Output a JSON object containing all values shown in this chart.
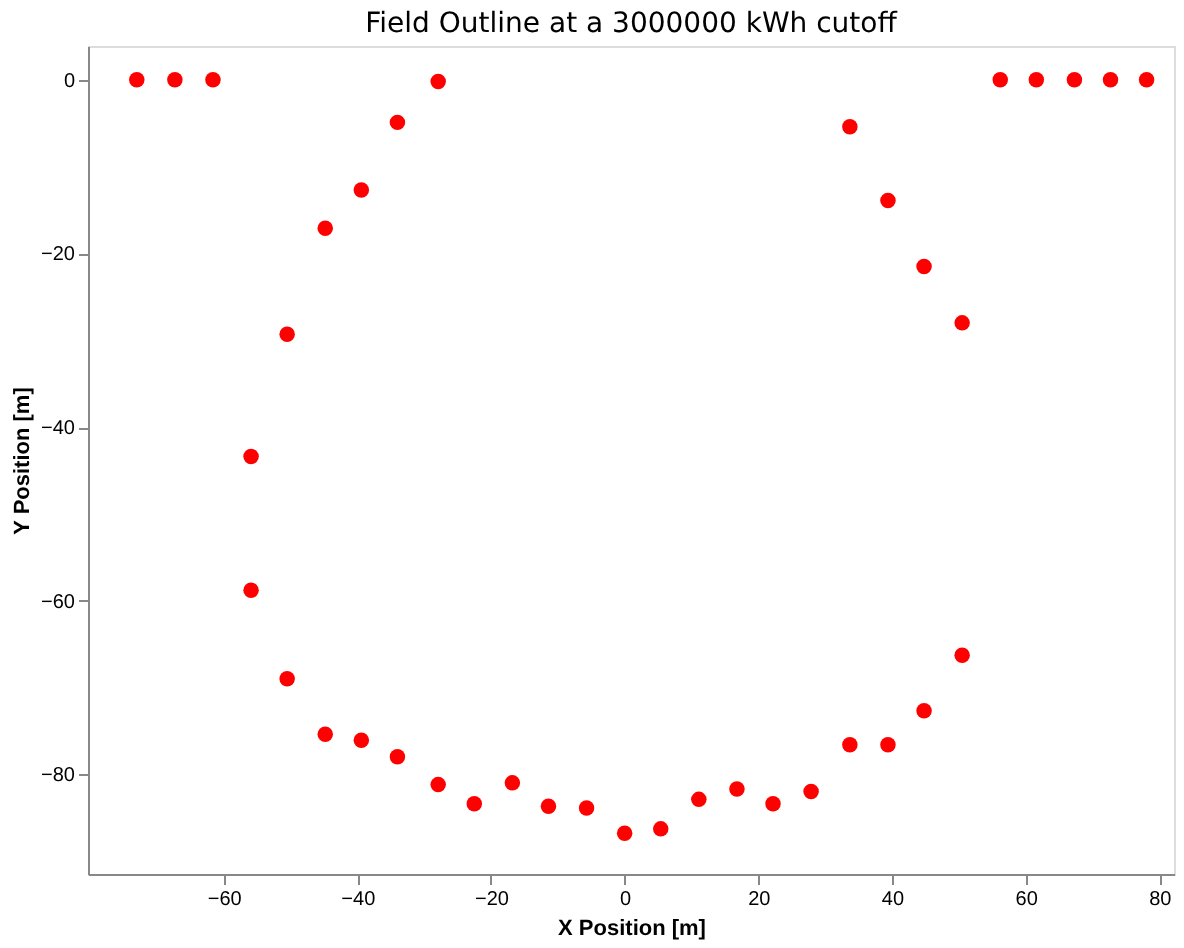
{
  "chart_data": {
    "type": "scatter",
    "title": "Field Outline at a 3000000 kWh cutoff",
    "xlabel": "X Position [m]",
    "ylabel": "Y Position [m]",
    "x": [
      -73.0,
      -67.3,
      -61.6,
      -27.9,
      -34.0,
      -39.4,
      -44.8,
      -50.5,
      -55.9,
      -55.9,
      -50.5,
      -44.8,
      -39.4,
      -34.0,
      -27.9,
      -22.5,
      -16.8,
      -11.4,
      -5.7,
      0,
      5.4,
      11.1,
      16.8,
      22.2,
      27.9,
      33.7,
      39.4,
      44.8,
      50.5,
      50.5,
      44.8,
      39.4,
      33.7,
      56.2,
      61.6,
      67.3,
      72.7,
      78.1
    ],
    "series": [
      {
        "color": "#ff0000",
        "values": [
          0,
          0,
          0,
          -0.2,
          -4.9,
          -12.7,
          -17.1,
          -29.3,
          -43.4,
          -58.8,
          -69.0,
          -75.4,
          -76.1,
          -78.0,
          -81.2,
          -83.4,
          -81.0,
          -83.7,
          -83.9,
          -86.8,
          -86.3,
          -82.9,
          -81.7,
          -83.4,
          -82.0,
          -76.6,
          -76.6,
          -72.7,
          -66.3,
          -28.0,
          -21.5,
          -13.9,
          -5.4,
          0,
          0,
          0,
          0,
          0
        ]
      }
    ],
    "xlim": [
      -80.3,
      82.2
    ],
    "xticks": [
      -60,
      -40,
      -20,
      0,
      20,
      40,
      60,
      80
    ],
    "ylim": [
      -91.5,
      3.9
    ],
    "yticks": [
      -80,
      -60,
      -40,
      -20,
      0
    ],
    "grid": false,
    "marker": "circle",
    "legend": false
  }
}
